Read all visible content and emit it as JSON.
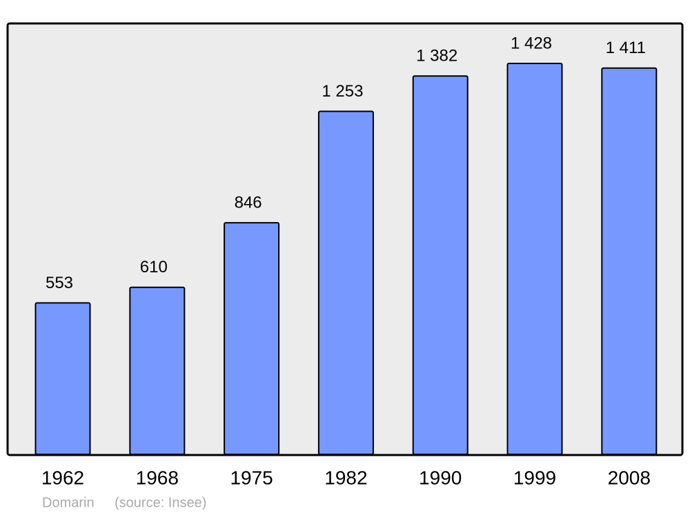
{
  "chart_data": {
    "type": "bar",
    "categories": [
      "1962",
      "1968",
      "1975",
      "1982",
      "1990",
      "1999",
      "2008"
    ],
    "values": [
      553,
      610,
      846,
      1253,
      1382,
      1428,
      1411
    ],
    "value_labels": [
      "553",
      "610",
      "846",
      "1 253",
      "1 382",
      "1 428",
      "1 411"
    ],
    "color": "#7799ff",
    "place": "Domarin",
    "source": "(source: Insee)"
  }
}
